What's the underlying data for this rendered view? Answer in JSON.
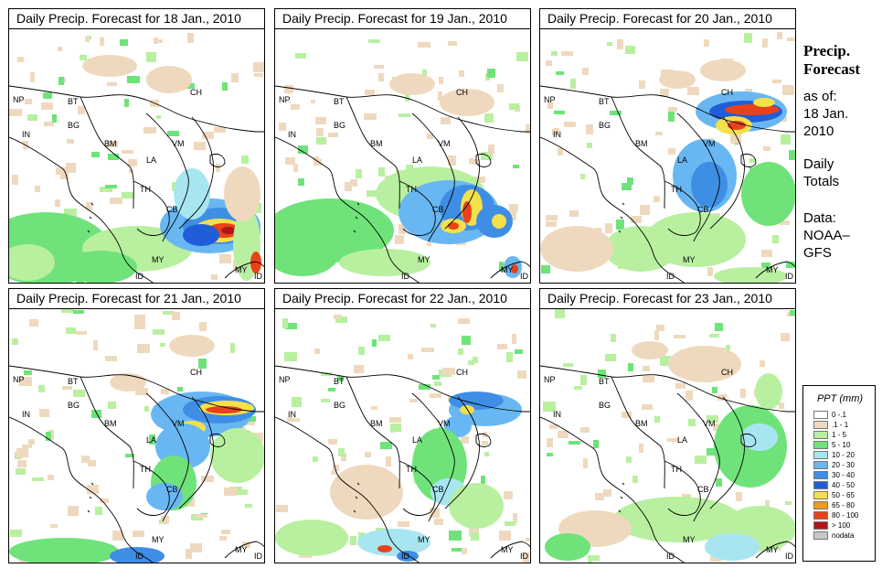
{
  "panels": [
    {
      "title": "Daily Precip. Forecast for  18 Jan., 2010"
    },
    {
      "title": "Daily Precip. Forecast for  19 Jan., 2010"
    },
    {
      "title": "Daily Precip. Forecast for  20 Jan., 2010"
    },
    {
      "title": "Daily Precip. Forecast for  21 Jan., 2010"
    },
    {
      "title": "Daily Precip. Forecast for  22 Jan., 2010"
    },
    {
      "title": "Daily Precip. Forecast for  23 Jan., 2010"
    }
  ],
  "country_labels": {
    "NP": "NP",
    "BT": "BT",
    "BG": "BG",
    "IN": "IN",
    "CH": "CH",
    "BM": "BM",
    "VM": "VM",
    "LA": "LA",
    "TH": "TH",
    "CB": "CB",
    "MY": "MY",
    "ID": "ID"
  },
  "sidebar": {
    "title_line1": "Precip.",
    "title_line2": "Forecast",
    "asof": "as of:",
    "date_line1": "18 Jan.",
    "date_line2": "2010",
    "totals_line1": "Daily",
    "totals_line2": "Totals",
    "data_line1": "Data:",
    "data_line2": "NOAA–",
    "data_line3": "GFS"
  },
  "legend": {
    "title": "PPT (mm)",
    "items": [
      {
        "label": "0 -.1",
        "color": "#ffffff"
      },
      {
        "label": ".1 - 1",
        "color": "#efd9be"
      },
      {
        "label": "1 - 5",
        "color": "#b8f0a0"
      },
      {
        "label": "5 - 10",
        "color": "#6fe37a"
      },
      {
        "label": "10 - 20",
        "color": "#a7e6f0"
      },
      {
        "label": "20 - 30",
        "color": "#69b7f2"
      },
      {
        "label": "30 - 40",
        "color": "#3f8ee6"
      },
      {
        "label": "40 - 50",
        "color": "#1f5ed8"
      },
      {
        "label": "50 - 65",
        "color": "#f4e04a"
      },
      {
        "label": "65 - 80",
        "color": "#f39a1c"
      },
      {
        "label": "80 - 100",
        "color": "#e8421b"
      },
      {
        "label": "> 100",
        "color": "#b3141b"
      },
      {
        "label": "nodata",
        "color": "#c8c8c8"
      }
    ]
  }
}
